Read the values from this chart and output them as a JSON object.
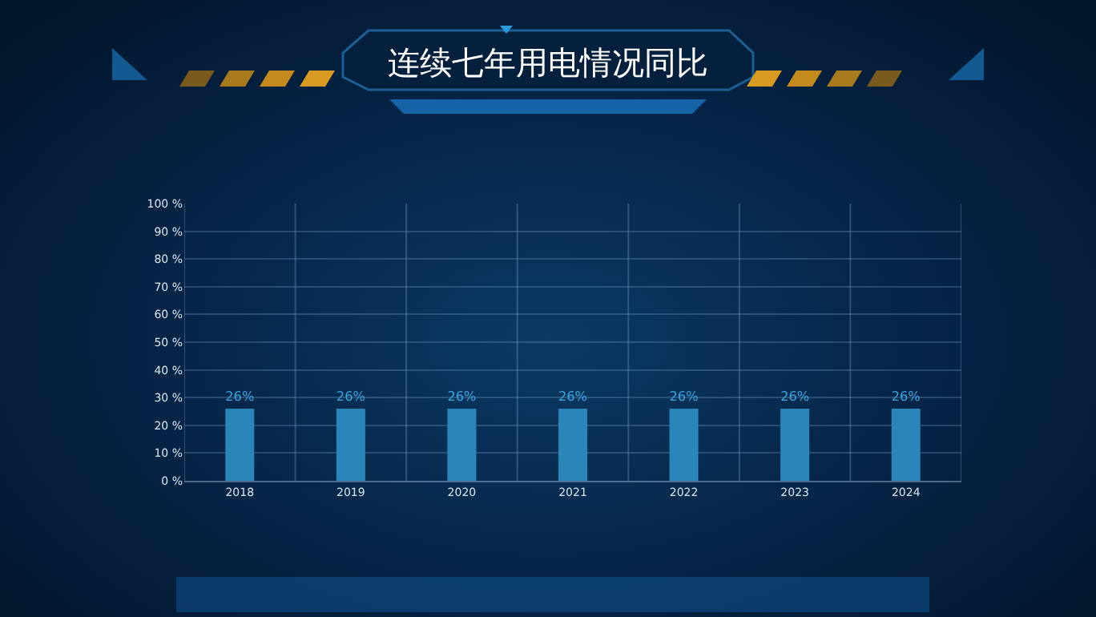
{
  "chart_data": {
    "type": "bar",
    "title": "连续七年用电情况同比",
    "categories": [
      "2018",
      "2019",
      "2020",
      "2021",
      "2022",
      "2023",
      "2024"
    ],
    "series": [
      {
        "color": "#2a86b8",
        "values": [
          26,
          26,
          26,
          26,
          26,
          26,
          26
        ],
        "value_labels": [
          "26%",
          "26%",
          "26%",
          "26%",
          "26%",
          "26%",
          "26%"
        ]
      }
    ],
    "ylim": [
      0,
      100
    ],
    "yticks": [
      {
        "value": 0,
        "label": "0 %"
      },
      {
        "value": 10,
        "label": "10 %"
      },
      {
        "value": 20,
        "label": "20 %"
      },
      {
        "value": 30,
        "label": "30 %"
      },
      {
        "value": 40,
        "label": "40 %"
      },
      {
        "value": 50,
        "label": "50 %"
      },
      {
        "value": 60,
        "label": "60 %"
      },
      {
        "value": 70,
        "label": "70 %"
      },
      {
        "value": 80,
        "label": "80 %"
      },
      {
        "value": 90,
        "label": "90 %"
      },
      {
        "value": 100,
        "label": "100 %"
      }
    ],
    "grid": true
  }
}
